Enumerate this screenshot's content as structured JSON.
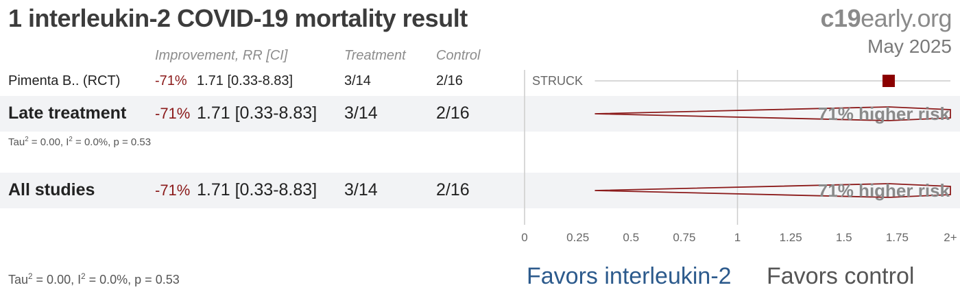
{
  "title": "1 interleukin-2 COVID-19 mortality result",
  "brand": {
    "bold": "c19",
    "rest": "early.org"
  },
  "date": "May 2025",
  "headers": {
    "improvement": "Improvement, RR [CI]",
    "treatment": "Treatment",
    "control": "Control"
  },
  "rows": [
    {
      "kind": "study",
      "name": "Pimenta B.. (RCT)",
      "improvement": "-71%",
      "rr_ci": "1.71 [0.33-8.83]",
      "treatment": "3/14",
      "control": "2/16",
      "note": "STRUCK"
    },
    {
      "kind": "group",
      "name": "Late treatment",
      "improvement": "-71%",
      "rr_ci": "1.71 [0.33-8.83]",
      "treatment": "3/14",
      "control": "2/16",
      "risk_label": "71% higher risk"
    },
    {
      "kind": "group",
      "name": "All studies",
      "improvement": "-71%",
      "rr_ci": "1.71 [0.33-8.83]",
      "treatment": "3/14",
      "control": "2/16",
      "risk_label": "71% higher risk"
    }
  ],
  "heterogeneity": {
    "late": {
      "tau_pre": "Tau",
      "tau_sup": "2",
      "tau_post": " = 0.00, I",
      "i_sup": "2",
      "i_post": " = 0.0%, p = 0.53"
    },
    "all": {
      "tau_pre": "Tau",
      "tau_sup": "2",
      "tau_post": " = 0.00, I",
      "i_sup": "2",
      "i_post": " = 0.0%, p = 0.53"
    }
  },
  "favors": {
    "left": "Favors interleukin-2",
    "right": "Favors control"
  },
  "colors": {
    "marker": "#8b0000",
    "diamond": "#8b1a1a",
    "axis": "#cccccc",
    "favors_left": "#2c5a8c"
  },
  "chart_data": {
    "type": "forest",
    "scale": "linear",
    "xlim": [
      0,
      2
    ],
    "ticks": [
      "0",
      "0.25",
      "0.5",
      "0.75",
      "1",
      "1.25",
      "1.5",
      "1.75",
      "2+"
    ],
    "tick_values": [
      0,
      0.25,
      0.5,
      0.75,
      1,
      1.25,
      1.5,
      1.75,
      2
    ],
    "reference_line": 1,
    "studies": [
      {
        "name": "Pimenta B.. (RCT)",
        "rr": 1.71,
        "lower": 0.33,
        "upper": 8.83
      }
    ],
    "pooled": [
      {
        "name": "Late treatment",
        "rr": 1.71,
        "lower": 0.33,
        "upper": 8.83
      },
      {
        "name": "All studies",
        "rr": 1.71,
        "lower": 0.33,
        "upper": 8.83
      }
    ]
  }
}
